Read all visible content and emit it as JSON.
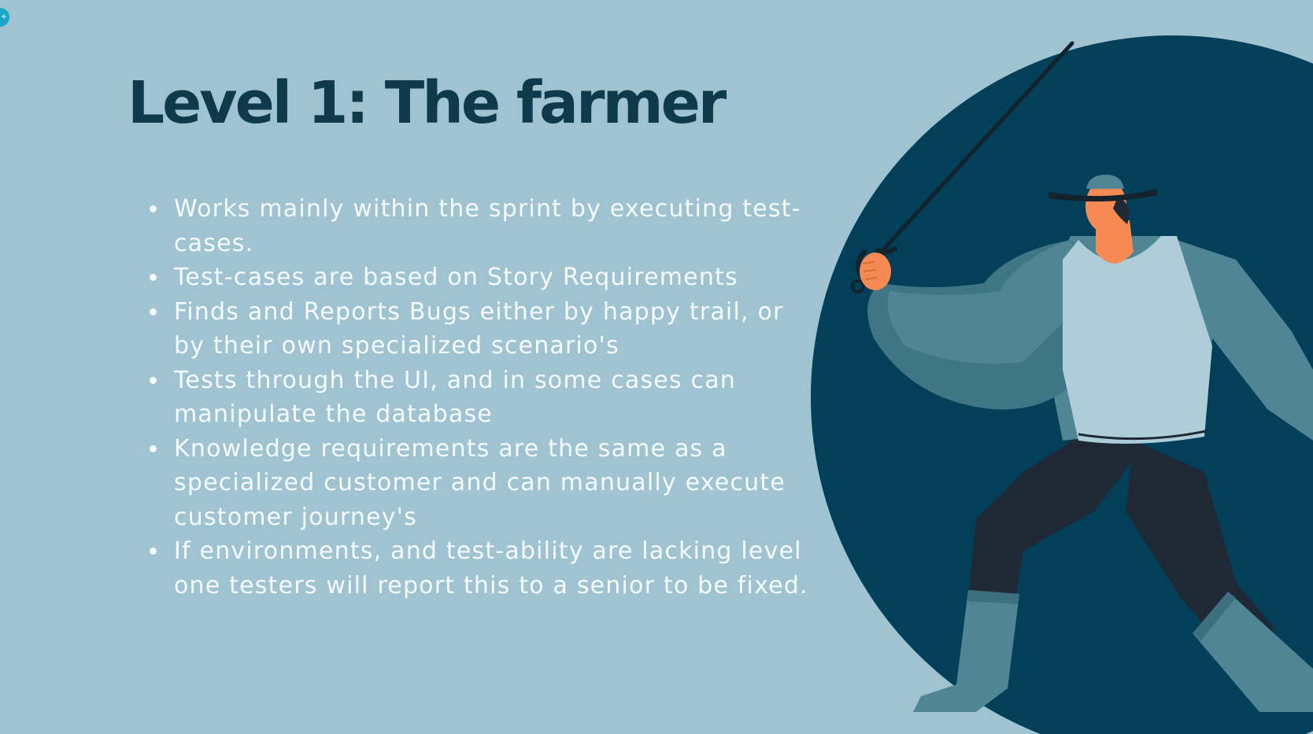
{
  "slide": {
    "title": "Level 1: The farmer",
    "bullets": [
      "Works mainly within the sprint by executing test-cases.",
      "Test-cases are based on Story Requirements",
      "Finds and Reports Bugs either by happy trail, or by their own specialized scenario's",
      "Tests through the UI, and in some cases can manipulate the database",
      "Knowledge requirements are the same as a specialized customer and can manually execute customer journey's",
      "If environments, and test-ability are lacking level one testers will report this to a senior to be fixed."
    ]
  },
  "overlay": {
    "corner_icon": "expand-icon",
    "corner_glyph": "+"
  },
  "colors": {
    "background": "#9fc3d1",
    "title": "#0e3a4c",
    "body_text": "#f6fbfc",
    "circle": "#023f58",
    "skin": "#f58a52",
    "shirt": "#4f8595",
    "vest": "#aecdd8",
    "pants": "#1f2935"
  },
  "illustration": {
    "subject": "swordsman-illustration"
  }
}
